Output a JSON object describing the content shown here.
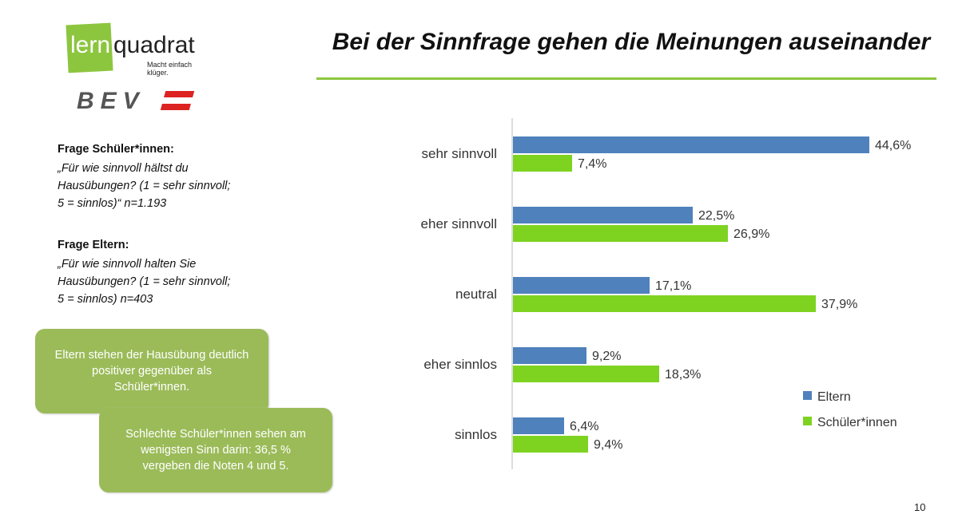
{
  "logos": {
    "lernquadrat": {
      "part1": "lern",
      "part2": "quadrat",
      "tagline": "Macht einfach klüger."
    },
    "bev": "BEV"
  },
  "title": "Bei der Sinnfrage gehen die Meinungen auseinander",
  "questions": [
    {
      "heading": "Frage Schüler*innen:",
      "text": "„Für wie sinnvoll hältst du\nHausübungen? (1 = sehr sinnvoll;\n5 = sinnlos)“  n=1.193"
    },
    {
      "heading": "Frage Eltern:",
      "text": "„Für wie sinnvoll halten Sie\nHausübungen? (1 = sehr sinnvoll;\n5 = sinnlos) n=403"
    }
  ],
  "callouts": [
    "Eltern stehen der Hausübung deutlich positiver gegenüber als Schüler*innen.",
    "Schlechte Schüler*innen sehen am wenigsten Sinn darin: 36,5 % vergeben die Noten 4 und 5."
  ],
  "page_number": "10",
  "chart_data": {
    "type": "bar",
    "orientation": "horizontal",
    "categories": [
      "sehr sinnvoll",
      "eher sinnvoll",
      "neutral",
      "eher sinnlos",
      "sinnlos"
    ],
    "series": [
      {
        "name": "Eltern",
        "color": "#4f81bd",
        "values": [
          44.6,
          22.5,
          17.1,
          9.2,
          6.4
        ],
        "labels": [
          "44,6%",
          "22,5%",
          "17,1%",
          "9,2%",
          "6,4%"
        ]
      },
      {
        "name": "Schüler*innen",
        "color": "#7ed321",
        "values": [
          7.4,
          26.9,
          37.9,
          18.3,
          9.4
        ],
        "labels": [
          "7,4%",
          "26,9%",
          "37,9%",
          "18,3%",
          "9,4%"
        ]
      }
    ],
    "xlim": [
      0,
      50
    ],
    "grid": false,
    "legend": "bottom-right"
  }
}
